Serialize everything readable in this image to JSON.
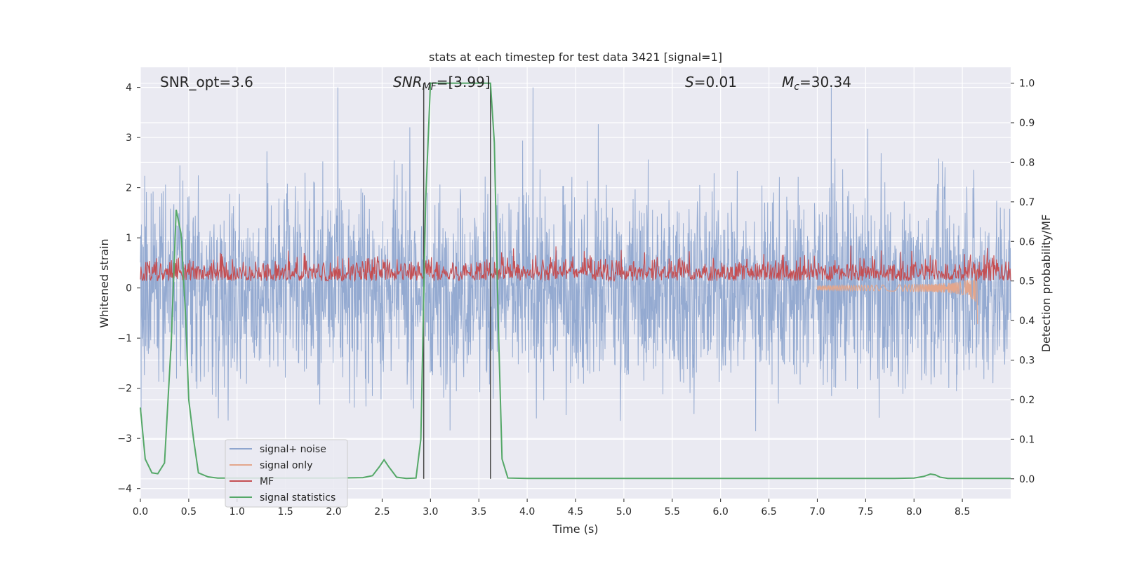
{
  "chart_data": {
    "type": "line",
    "title": "stats at each timestep for test data 3421 [signal=1]",
    "xlabel": "Time (s)",
    "ylabel_left": "Whitened strain",
    "ylabel_right": "Detection probability/MF",
    "xlim": [
      0,
      9.0
    ],
    "ylim_left": [
      -4.2,
      4.4
    ],
    "ylim_right": [
      -0.05,
      1.04
    ],
    "x_ticks": [
      0.0,
      0.5,
      1.0,
      1.5,
      2.0,
      2.5,
      3.0,
      3.5,
      4.0,
      4.5,
      5.0,
      5.5,
      6.0,
      6.5,
      7.0,
      7.5,
      8.0,
      8.5
    ],
    "x_tick_labels": [
      "0.0",
      "0.5",
      "1.0",
      "1.5",
      "2.0",
      "2.5",
      "3.0",
      "3.5",
      "4.0",
      "4.5",
      "5.0",
      "5.5",
      "6.0",
      "6.5",
      "7.0",
      "7.5",
      "8.0",
      "8.5"
    ],
    "y_left_ticks": [
      4,
      3,
      2,
      1,
      0,
      -1,
      -2,
      -3,
      -4
    ],
    "y_left_tick_labels": [
      "4",
      "3",
      "2",
      "1",
      "0",
      "−1",
      "−2",
      "−3",
      "−4"
    ],
    "y_right_ticks": [
      1.0,
      0.9,
      0.8,
      0.7,
      0.6,
      0.5,
      0.4,
      0.3,
      0.2,
      0.1,
      0.0
    ],
    "y_right_tick_labels": [
      "1.0",
      "0.9",
      "0.8",
      "0.7",
      "0.6",
      "0.5",
      "0.4",
      "0.3",
      "0.2",
      "0.1",
      "0.0"
    ],
    "grid": true,
    "legend_position": "lower-left",
    "annotations": [
      "SNR_opt=3.6",
      "SNR",
      "MF",
      "=[3.99]",
      "S",
      "=0.01",
      "M",
      "c",
      "=30.34"
    ],
    "vlines": [
      2.93,
      3.62
    ],
    "series": [
      {
        "name": "signal+ noise",
        "color": "#8fa6cf",
        "description_range": [
          -3.8,
          4.0
        ]
      },
      {
        "name": "signal only",
        "color": "#e3a68c"
      },
      {
        "name": "MF",
        "color": "#c44e52",
        "range_right": [
          0.5,
          0.62
        ]
      },
      {
        "name": "signal statistics",
        "color": "#55a868",
        "x": [
          0.0,
          0.05,
          0.12,
          0.18,
          0.25,
          0.32,
          0.37,
          0.42,
          0.47,
          0.5,
          0.55,
          0.6,
          0.7,
          0.8,
          1.0,
          1.5,
          2.0,
          2.3,
          2.4,
          2.47,
          2.52,
          2.57,
          2.65,
          2.75,
          2.85,
          2.9,
          2.95,
          3.0,
          3.1,
          3.3,
          3.5,
          3.62,
          3.66,
          3.7,
          3.74,
          3.8,
          4.0,
          5.0,
          6.0,
          7.0,
          7.8,
          8.0,
          8.1,
          8.17,
          8.22,
          8.27,
          8.35,
          8.5,
          8.7,
          9.0
        ],
        "y": [
          0.18,
          0.05,
          0.015,
          0.013,
          0.04,
          0.35,
          0.68,
          0.62,
          0.4,
          0.2,
          0.1,
          0.015,
          0.005,
          0.002,
          0.002,
          0.002,
          0.002,
          0.003,
          0.008,
          0.03,
          0.048,
          0.03,
          0.004,
          0.001,
          0.002,
          0.1,
          0.7,
          1.0,
          1.0,
          1.0,
          1.0,
          1.0,
          0.85,
          0.4,
          0.05,
          0.002,
          0.001,
          0.001,
          0.001,
          0.001,
          0.001,
          0.002,
          0.006,
          0.012,
          0.01,
          0.004,
          0.001,
          0.001,
          0.001,
          0.001
        ]
      }
    ]
  },
  "colors": {
    "axes_bg": "#eaeaf2",
    "grid": "#ffffff",
    "vline": "#4a4a4a"
  }
}
